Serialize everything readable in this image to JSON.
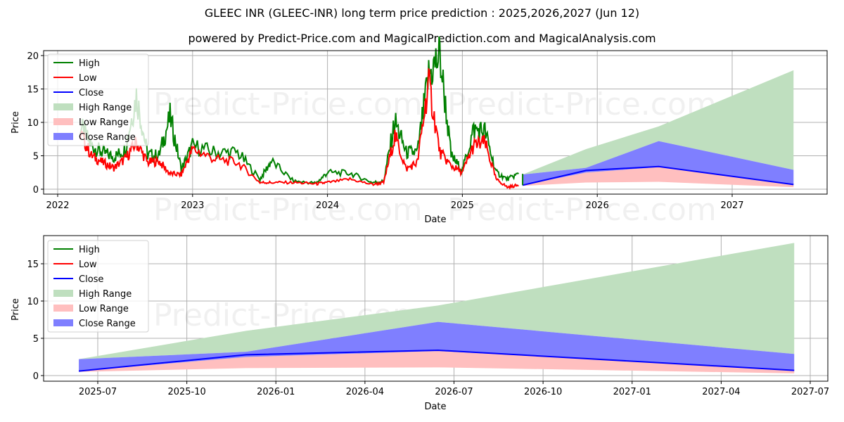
{
  "header": {
    "title": "GLEEC INR (GLEEC-INR) long term price prediction : 2025,2026,2027 (Jun 12)",
    "subtitle": "powered by Predict-Price.com and MagicalPrediction.com and MagicalAnalysis.com"
  },
  "watermark": "Predict-Price.com",
  "legend": [
    "High",
    "Low",
    "Close",
    "High Range",
    "Low Range",
    "Close Range"
  ],
  "colors": {
    "high": "#008000",
    "low": "#ff0000",
    "close": "#0000ff",
    "high_range": "#bfdfbf",
    "low_range": "#ffbfbf",
    "close_range": "#7f7fff"
  },
  "chart_data": [
    {
      "type": "line",
      "title": "GLEEC INR (GLEEC-INR) long term price prediction : 2025,2026,2027 (Jun 12)",
      "subtitle": "powered by Predict-Price.com and MagicalPrediction.com and MagicalAnalysis.com",
      "xlabel": "Date",
      "ylabel": "Price",
      "xticks": [
        "2022",
        "2023",
        "2024",
        "2025",
        "2026",
        "2027"
      ],
      "yticks": [
        0,
        5,
        10,
        15,
        20
      ],
      "ylim": [
        -0.5,
        20.8
      ],
      "grid": true,
      "legend_position": "upper left",
      "legend": [
        "High",
        "Low",
        "Close",
        "High Range",
        "Low Range",
        "Close Range"
      ],
      "historical": {
        "x": [
          "2022-03",
          "2022-04",
          "2022-05",
          "2022-06",
          "2022-07",
          "2022-08",
          "2022-09",
          "2022-10",
          "2022-11",
          "2022-12",
          "2023-01",
          "2023-03",
          "2023-05",
          "2023-07",
          "2023-08",
          "2023-10",
          "2023-12",
          "2024-01",
          "2024-03",
          "2024-05",
          "2024-06",
          "2024-07",
          "2024-08",
          "2024-09",
          "2024-10",
          "2024-11",
          "2024-12",
          "2025-01",
          "2025-02",
          "2025-03",
          "2025-04",
          "2025-05",
          "2025-06"
        ],
        "series": [
          {
            "name": "High",
            "values": [
              9.5,
              6.5,
              5.5,
              4.8,
              6.0,
              14.0,
              5.2,
              5.0,
              10.8,
              3.0,
              6.5,
              5.5,
              5.5,
              1.5,
              4.2,
              1.2,
              0.9,
              2.5,
              2.4,
              1.0,
              1.2,
              10.2,
              5.5,
              5.5,
              17.0,
              20.0,
              5.0,
              2.8,
              8.9,
              8.7,
              2.5,
              1.5,
              2.3
            ]
          },
          {
            "name": "Low",
            "values": [
              8.5,
              5.0,
              4.0,
              3.2,
              4.5,
              7.0,
              4.0,
              4.2,
              2.3,
              2.2,
              6.0,
              4.5,
              4.0,
              1.0,
              1.0,
              1.0,
              0.8,
              1.0,
              1.5,
              0.7,
              1.0,
              8.0,
              3.0,
              4.0,
              16.0,
              5.5,
              3.5,
              2.5,
              6.5,
              7.0,
              1.5,
              0.3,
              0.6
            ]
          }
        ]
      },
      "prediction": {
        "x": [
          "2025-06-12",
          "2025-12-01",
          "2026-06-15",
          "2027-06-15"
        ],
        "series": [
          {
            "name": "Close",
            "values": [
              0.6,
              2.8,
              3.4,
              0.7
            ]
          },
          {
            "name": "High Range",
            "upper": [
              2.2,
              6.0,
              9.4,
              17.8
            ],
            "lower": [
              2.2,
              3.2,
              7.2,
              2.9
            ]
          },
          {
            "name": "Close Range",
            "upper": [
              2.2,
              3.2,
              7.2,
              2.9
            ],
            "lower": [
              0.6,
              2.5,
              3.3,
              0.7
            ]
          },
          {
            "name": "Low Range",
            "upper": [
              0.6,
              2.5,
              3.3,
              0.7
            ],
            "lower": [
              0.5,
              1.0,
              1.1,
              0.3
            ]
          }
        ]
      }
    },
    {
      "type": "line",
      "xlabel": "Date",
      "ylabel": "Price",
      "xticks": [
        "2025-07",
        "2025-10",
        "2026-01",
        "2026-04",
        "2026-07",
        "2026-10",
        "2027-01",
        "2027-04",
        "2027-07"
      ],
      "yticks": [
        0,
        5,
        10,
        15
      ],
      "ylim": [
        -0.8,
        18.7
      ],
      "grid": true,
      "legend_position": "upper left",
      "legend": [
        "High",
        "Low",
        "Close",
        "High Range",
        "Low Range",
        "Close Range"
      ],
      "prediction": {
        "x": [
          "2025-06-12",
          "2025-12-01",
          "2026-06-15",
          "2027-06-15"
        ],
        "series": [
          {
            "name": "Close",
            "values": [
              0.6,
              2.8,
              3.4,
              0.7
            ]
          },
          {
            "name": "High Range",
            "upper": [
              2.2,
              6.0,
              9.4,
              17.8
            ],
            "lower": [
              2.2,
              3.2,
              7.2,
              2.9
            ]
          },
          {
            "name": "Close Range",
            "upper": [
              2.2,
              3.2,
              7.2,
              2.9
            ],
            "lower": [
              0.6,
              2.5,
              3.3,
              0.7
            ]
          },
          {
            "name": "Low Range",
            "upper": [
              0.6,
              2.5,
              3.3,
              0.7
            ],
            "lower": [
              0.5,
              1.0,
              1.1,
              0.3
            ]
          }
        ]
      }
    }
  ]
}
